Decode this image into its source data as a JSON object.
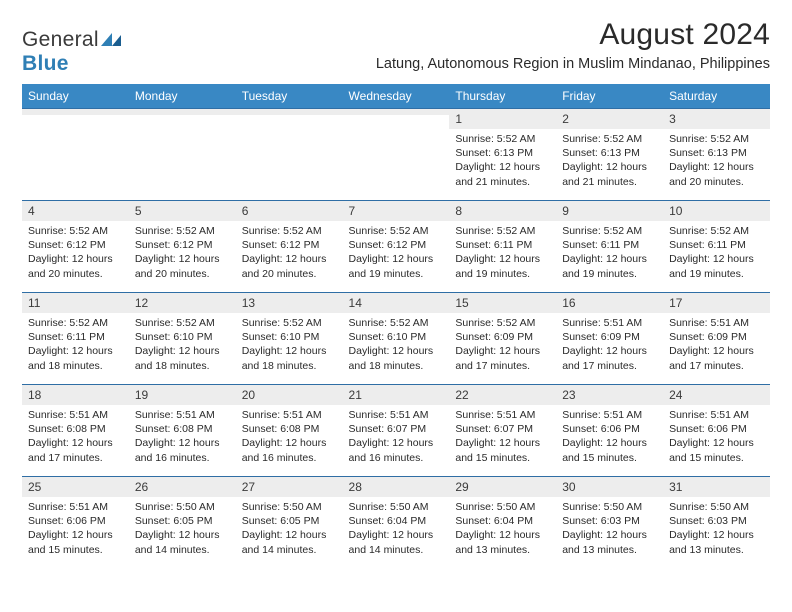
{
  "logo": {
    "part1": "General",
    "part2": "Blue"
  },
  "title": "August 2024",
  "location": "Latung, Autonomous Region in Muslim Mindanao, Philippines",
  "colors": {
    "header_bg": "#3988c4",
    "header_text": "#ffffff",
    "daynum_bg": "#ededed",
    "border": "#2f6ea5",
    "logo_blue": "#2f7fb5",
    "text": "#2a2a2a",
    "page_bg": "#ffffff"
  },
  "day_headers": [
    "Sunday",
    "Monday",
    "Tuesday",
    "Wednesday",
    "Thursday",
    "Friday",
    "Saturday"
  ],
  "weeks": [
    [
      {
        "num": "",
        "sunrise": "",
        "sunset": "",
        "daylight": ""
      },
      {
        "num": "",
        "sunrise": "",
        "sunset": "",
        "daylight": ""
      },
      {
        "num": "",
        "sunrise": "",
        "sunset": "",
        "daylight": ""
      },
      {
        "num": "",
        "sunrise": "",
        "sunset": "",
        "daylight": ""
      },
      {
        "num": "1",
        "sunrise": "Sunrise: 5:52 AM",
        "sunset": "Sunset: 6:13 PM",
        "daylight": "Daylight: 12 hours and 21 minutes."
      },
      {
        "num": "2",
        "sunrise": "Sunrise: 5:52 AM",
        "sunset": "Sunset: 6:13 PM",
        "daylight": "Daylight: 12 hours and 21 minutes."
      },
      {
        "num": "3",
        "sunrise": "Sunrise: 5:52 AM",
        "sunset": "Sunset: 6:13 PM",
        "daylight": "Daylight: 12 hours and 20 minutes."
      }
    ],
    [
      {
        "num": "4",
        "sunrise": "Sunrise: 5:52 AM",
        "sunset": "Sunset: 6:12 PM",
        "daylight": "Daylight: 12 hours and 20 minutes."
      },
      {
        "num": "5",
        "sunrise": "Sunrise: 5:52 AM",
        "sunset": "Sunset: 6:12 PM",
        "daylight": "Daylight: 12 hours and 20 minutes."
      },
      {
        "num": "6",
        "sunrise": "Sunrise: 5:52 AM",
        "sunset": "Sunset: 6:12 PM",
        "daylight": "Daylight: 12 hours and 20 minutes."
      },
      {
        "num": "7",
        "sunrise": "Sunrise: 5:52 AM",
        "sunset": "Sunset: 6:12 PM",
        "daylight": "Daylight: 12 hours and 19 minutes."
      },
      {
        "num": "8",
        "sunrise": "Sunrise: 5:52 AM",
        "sunset": "Sunset: 6:11 PM",
        "daylight": "Daylight: 12 hours and 19 minutes."
      },
      {
        "num": "9",
        "sunrise": "Sunrise: 5:52 AM",
        "sunset": "Sunset: 6:11 PM",
        "daylight": "Daylight: 12 hours and 19 minutes."
      },
      {
        "num": "10",
        "sunrise": "Sunrise: 5:52 AM",
        "sunset": "Sunset: 6:11 PM",
        "daylight": "Daylight: 12 hours and 19 minutes."
      }
    ],
    [
      {
        "num": "11",
        "sunrise": "Sunrise: 5:52 AM",
        "sunset": "Sunset: 6:11 PM",
        "daylight": "Daylight: 12 hours and 18 minutes."
      },
      {
        "num": "12",
        "sunrise": "Sunrise: 5:52 AM",
        "sunset": "Sunset: 6:10 PM",
        "daylight": "Daylight: 12 hours and 18 minutes."
      },
      {
        "num": "13",
        "sunrise": "Sunrise: 5:52 AM",
        "sunset": "Sunset: 6:10 PM",
        "daylight": "Daylight: 12 hours and 18 minutes."
      },
      {
        "num": "14",
        "sunrise": "Sunrise: 5:52 AM",
        "sunset": "Sunset: 6:10 PM",
        "daylight": "Daylight: 12 hours and 18 minutes."
      },
      {
        "num": "15",
        "sunrise": "Sunrise: 5:52 AM",
        "sunset": "Sunset: 6:09 PM",
        "daylight": "Daylight: 12 hours and 17 minutes."
      },
      {
        "num": "16",
        "sunrise": "Sunrise: 5:51 AM",
        "sunset": "Sunset: 6:09 PM",
        "daylight": "Daylight: 12 hours and 17 minutes."
      },
      {
        "num": "17",
        "sunrise": "Sunrise: 5:51 AM",
        "sunset": "Sunset: 6:09 PM",
        "daylight": "Daylight: 12 hours and 17 minutes."
      }
    ],
    [
      {
        "num": "18",
        "sunrise": "Sunrise: 5:51 AM",
        "sunset": "Sunset: 6:08 PM",
        "daylight": "Daylight: 12 hours and 17 minutes."
      },
      {
        "num": "19",
        "sunrise": "Sunrise: 5:51 AM",
        "sunset": "Sunset: 6:08 PM",
        "daylight": "Daylight: 12 hours and 16 minutes."
      },
      {
        "num": "20",
        "sunrise": "Sunrise: 5:51 AM",
        "sunset": "Sunset: 6:08 PM",
        "daylight": "Daylight: 12 hours and 16 minutes."
      },
      {
        "num": "21",
        "sunrise": "Sunrise: 5:51 AM",
        "sunset": "Sunset: 6:07 PM",
        "daylight": "Daylight: 12 hours and 16 minutes."
      },
      {
        "num": "22",
        "sunrise": "Sunrise: 5:51 AM",
        "sunset": "Sunset: 6:07 PM",
        "daylight": "Daylight: 12 hours and 15 minutes."
      },
      {
        "num": "23",
        "sunrise": "Sunrise: 5:51 AM",
        "sunset": "Sunset: 6:06 PM",
        "daylight": "Daylight: 12 hours and 15 minutes."
      },
      {
        "num": "24",
        "sunrise": "Sunrise: 5:51 AM",
        "sunset": "Sunset: 6:06 PM",
        "daylight": "Daylight: 12 hours and 15 minutes."
      }
    ],
    [
      {
        "num": "25",
        "sunrise": "Sunrise: 5:51 AM",
        "sunset": "Sunset: 6:06 PM",
        "daylight": "Daylight: 12 hours and 15 minutes."
      },
      {
        "num": "26",
        "sunrise": "Sunrise: 5:50 AM",
        "sunset": "Sunset: 6:05 PM",
        "daylight": "Daylight: 12 hours and 14 minutes."
      },
      {
        "num": "27",
        "sunrise": "Sunrise: 5:50 AM",
        "sunset": "Sunset: 6:05 PM",
        "daylight": "Daylight: 12 hours and 14 minutes."
      },
      {
        "num": "28",
        "sunrise": "Sunrise: 5:50 AM",
        "sunset": "Sunset: 6:04 PM",
        "daylight": "Daylight: 12 hours and 14 minutes."
      },
      {
        "num": "29",
        "sunrise": "Sunrise: 5:50 AM",
        "sunset": "Sunset: 6:04 PM",
        "daylight": "Daylight: 12 hours and 13 minutes."
      },
      {
        "num": "30",
        "sunrise": "Sunrise: 5:50 AM",
        "sunset": "Sunset: 6:03 PM",
        "daylight": "Daylight: 12 hours and 13 minutes."
      },
      {
        "num": "31",
        "sunrise": "Sunrise: 5:50 AM",
        "sunset": "Sunset: 6:03 PM",
        "daylight": "Daylight: 12 hours and 13 minutes."
      }
    ]
  ]
}
